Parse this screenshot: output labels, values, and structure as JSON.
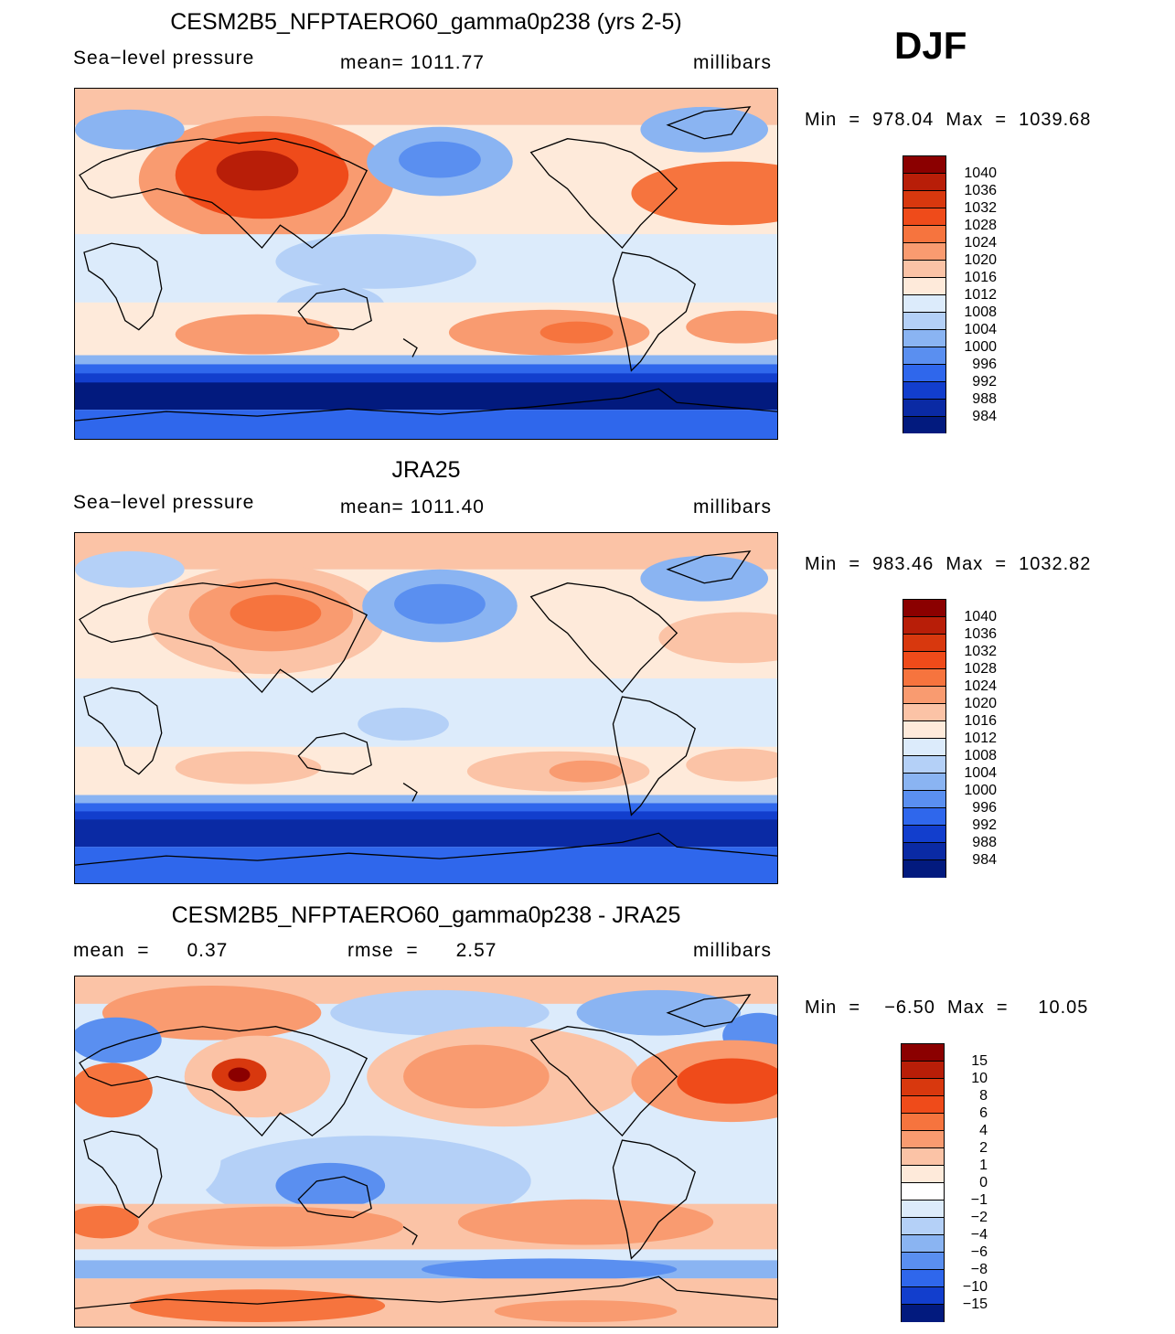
{
  "season": "DJF",
  "panels": [
    {
      "title": "CESM2B5_NFPTAERO60_gamma0p238 (yrs 2-5)",
      "left_label": "Sea−level pressure",
      "center_label": "mean=  1011.77",
      "units": "millibars",
      "min_max": "Min  =  978.04  Max  =  1039.68",
      "colorbar_labels": [
        "1040",
        "1036",
        "1032",
        "1028",
        "1024",
        "1020",
        "1016",
        "1012",
        "1008",
        "1004",
        "1000",
        "996",
        "992",
        "988",
        "984"
      ]
    },
    {
      "title": "JRA25",
      "left_label": "Sea−level pressure",
      "center_label": "mean=  1011.40",
      "units": "millibars",
      "min_max": "Min  =  983.46  Max  =  1032.82",
      "colorbar_labels": [
        "1040",
        "1036",
        "1032",
        "1028",
        "1024",
        "1020",
        "1016",
        "1012",
        "1008",
        "1004",
        "1000",
        "996",
        "992",
        "988",
        "984"
      ]
    },
    {
      "title": "CESM2B5_NFPTAERO60_gamma0p238 - JRA25",
      "left_label": "mean  =      0.37",
      "center_label": "rmse  =      2.57",
      "units": "millibars",
      "min_max": "Min  =    −6.50  Max  =     10.05",
      "colorbar_labels": [
        "15",
        "10",
        "8",
        "6",
        "4",
        "2",
        "1",
        "0",
        "−1",
        "−2",
        "−4",
        "−6",
        "−8",
        "−10",
        "−15"
      ]
    }
  ],
  "colors": {
    "abs_scale": [
      "#8b0000",
      "#b81e08",
      "#d8380e",
      "#ef4b1a",
      "#f6743e",
      "#f99b70",
      "#fbc3a6",
      "#feeada",
      "#dcebfb",
      "#b4d0f7",
      "#8ab4f2",
      "#5a8ff0",
      "#2f67ec",
      "#123ecd",
      "#0a2aa4",
      "#021a7e"
    ],
    "diff_scale": [
      "#8b0000",
      "#b81e08",
      "#d8380e",
      "#ef4b1a",
      "#f6743e",
      "#f99b70",
      "#fbc3a6",
      "#feeada",
      "#ffffff",
      "#dcebfb",
      "#b4d0f7",
      "#8ab4f2",
      "#5a8ff0",
      "#2f67ec",
      "#123ecd",
      "#021a7e"
    ]
  }
}
